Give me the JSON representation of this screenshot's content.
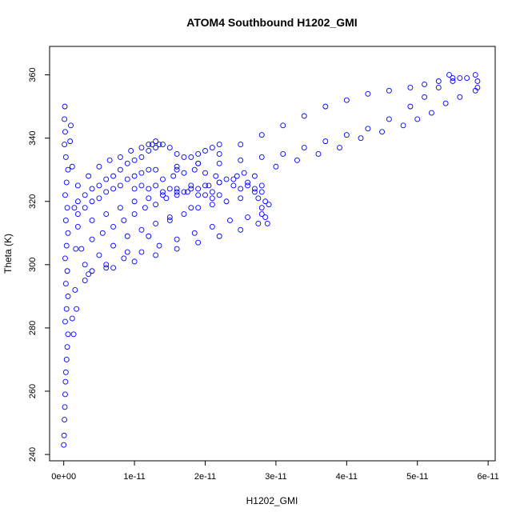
{
  "chart_data": {
    "type": "scatter",
    "title": "ATOM4 Southbound H1202_GMI",
    "xlabel": "H1202_GMI",
    "ylabel": "Theta (K)",
    "xlim": [
      -2e-12,
      6.1e-11
    ],
    "ylim": [
      238,
      369
    ],
    "x_ticks": [
      0,
      1e-11,
      2e-11,
      3e-11,
      4e-11,
      5e-11,
      6e-11
    ],
    "x_tick_labels": [
      "0e+00",
      "1e-11",
      "2e-11",
      "3e-11",
      "4e-11",
      "5e-11",
      "6e-11"
    ],
    "y_ticks": [
      240,
      260,
      280,
      300,
      320,
      340,
      360
    ],
    "y_tick_labels": [
      "240",
      "260",
      "280",
      "300",
      "320",
      "340",
      "360"
    ],
    "grid": false,
    "marker": "open-circle",
    "color": "#0000ff",
    "series": [
      {
        "points": [
          [
            0.0,
            243
          ],
          [
            5e-14,
            246
          ],
          [
            1e-13,
            251
          ],
          [
            1.5e-13,
            255
          ],
          [
            2e-13,
            259
          ],
          [
            2.5e-13,
            263
          ],
          [
            3e-13,
            266
          ],
          [
            4e-13,
            270
          ],
          [
            5e-13,
            274
          ],
          [
            6e-13,
            278
          ],
          [
            2e-13,
            282
          ],
          [
            4e-13,
            286
          ],
          [
            6e-13,
            290
          ],
          [
            3e-13,
            294
          ],
          [
            5e-13,
            298
          ],
          [
            2e-13,
            302
          ],
          [
            4e-13,
            306
          ],
          [
            6e-13,
            310
          ],
          [
            3e-13,
            314
          ],
          [
            5e-13,
            318
          ],
          [
            2e-13,
            322
          ],
          [
            4e-13,
            326
          ],
          [
            6e-13,
            330
          ],
          [
            3e-13,
            334
          ],
          [
            1e-13,
            338
          ],
          [
            2e-13,
            342
          ],
          [
            1e-13,
            346
          ],
          [
            1.5e-13,
            350
          ],
          [
            1e-12,
            344
          ],
          [
            9e-13,
            339
          ],
          [
            1.2e-12,
            331
          ],
          [
            1.5e-12,
            318
          ],
          [
            1.7e-12,
            305
          ],
          [
            1.6e-12,
            292
          ],
          [
            1.8e-12,
            286
          ],
          [
            1.4e-12,
            278
          ],
          [
            1.2e-12,
            283
          ],
          [
            2e-12,
            316
          ],
          [
            3e-12,
            318
          ],
          [
            4e-12,
            320
          ],
          [
            5e-12,
            321
          ],
          [
            6e-12,
            323
          ],
          [
            7e-12,
            324
          ],
          [
            8e-12,
            325
          ],
          [
            9e-12,
            327
          ],
          [
            1e-11,
            328
          ],
          [
            1.1e-11,
            329
          ],
          [
            1.2e-11,
            330
          ],
          [
            2e-12,
            320
          ],
          [
            3e-12,
            322
          ],
          [
            4e-12,
            324
          ],
          [
            5e-12,
            325
          ],
          [
            6e-12,
            327
          ],
          [
            7e-12,
            328
          ],
          [
            8e-12,
            330
          ],
          [
            9e-12,
            332
          ],
          [
            1e-11,
            333
          ],
          [
            1.1e-11,
            334
          ],
          [
            1.2e-11,
            336
          ],
          [
            1.3e-11,
            337
          ],
          [
            2e-12,
            325
          ],
          [
            3.5e-12,
            328
          ],
          [
            5e-12,
            331
          ],
          [
            6.5e-12,
            333
          ],
          [
            8e-12,
            334
          ],
          [
            9.5e-12,
            336
          ],
          [
            1.1e-11,
            337
          ],
          [
            1.25e-11,
            338
          ],
          [
            1.35e-11,
            338
          ],
          [
            2.5e-12,
            305
          ],
          [
            4e-12,
            308
          ],
          [
            5.5e-12,
            310
          ],
          [
            7e-12,
            312
          ],
          [
            8.5e-12,
            314
          ],
          [
            1e-11,
            316
          ],
          [
            1.15e-11,
            318
          ],
          [
            1.3e-11,
            319
          ],
          [
            1.45e-11,
            321
          ],
          [
            1.6e-11,
            322
          ],
          [
            1.75e-11,
            323
          ],
          [
            1.9e-11,
            324
          ],
          [
            2.05e-11,
            325
          ],
          [
            2.2e-11,
            326
          ],
          [
            3e-12,
            300
          ],
          [
            5e-12,
            303
          ],
          [
            7e-12,
            306
          ],
          [
            9e-12,
            309
          ],
          [
            1.1e-11,
            311
          ],
          [
            1.3e-11,
            313
          ],
          [
            1.5e-11,
            315
          ],
          [
            1.7e-11,
            316
          ],
          [
            1.9e-11,
            318
          ],
          [
            2.1e-11,
            319
          ],
          [
            2.3e-11,
            320
          ],
          [
            2.5e-11,
            321
          ],
          [
            3.5e-12,
            297
          ],
          [
            6e-12,
            300
          ],
          [
            8.5e-12,
            302
          ],
          [
            1.1e-11,
            304
          ],
          [
            1.35e-11,
            306
          ],
          [
            1.6e-11,
            308
          ],
          [
            1.85e-11,
            310
          ],
          [
            2.1e-11,
            312
          ],
          [
            2.35e-11,
            314
          ],
          [
            2.6e-11,
            315
          ],
          [
            2.8e-11,
            316
          ],
          [
            4e-12,
            298
          ],
          [
            7e-12,
            299
          ],
          [
            1e-11,
            301
          ],
          [
            1.3e-11,
            303
          ],
          [
            1.6e-11,
            305
          ],
          [
            1.9e-11,
            307
          ],
          [
            2.2e-11,
            309
          ],
          [
            2.5e-11,
            311
          ],
          [
            2.75e-11,
            313
          ],
          [
            2e-12,
            312
          ],
          [
            4e-12,
            314
          ],
          [
            6e-12,
            316
          ],
          [
            8e-12,
            318
          ],
          [
            1e-11,
            320
          ],
          [
            1.2e-11,
            321
          ],
          [
            1.4e-11,
            322
          ],
          [
            1.6e-11,
            323
          ],
          [
            1.8e-11,
            324
          ],
          [
            2e-11,
            325
          ],
          [
            2.2e-11,
            326
          ],
          [
            2.4e-11,
            327
          ],
          [
            2.6e-11,
            326
          ],
          [
            2.8e-11,
            323
          ],
          [
            2.85e-11,
            320
          ],
          [
            2.9e-11,
            319
          ],
          [
            2.75e-11,
            321
          ],
          [
            2.7e-11,
            323
          ],
          [
            2.8e-11,
            318
          ],
          [
            2.85e-11,
            315
          ],
          [
            2.88e-11,
            313
          ],
          [
            2.8e-11,
            325
          ],
          [
            2.7e-11,
            324
          ],
          [
            2.6e-11,
            325
          ],
          [
            2.5e-11,
            324
          ],
          [
            1.2e-11,
            338
          ],
          [
            1.3e-11,
            339
          ],
          [
            1.4e-11,
            338
          ],
          [
            1.5e-11,
            337
          ],
          [
            1.6e-11,
            335
          ],
          [
            1.7e-11,
            334
          ],
          [
            1.8e-11,
            334
          ],
          [
            1.9e-11,
            335
          ],
          [
            2e-11,
            336
          ],
          [
            2.1e-11,
            337
          ],
          [
            2.2e-11,
            338
          ],
          [
            1.4e-11,
            327
          ],
          [
            1.55e-11,
            328
          ],
          [
            1.7e-11,
            329
          ],
          [
            1.85e-11,
            330
          ],
          [
            2e-11,
            329
          ],
          [
            2.15e-11,
            328
          ],
          [
            2.3e-11,
            327
          ],
          [
            2.45e-11,
            328
          ],
          [
            2.55e-11,
            329
          ],
          [
            1e-11,
            324
          ],
          [
            1.1e-11,
            325
          ],
          [
            1.2e-11,
            324
          ],
          [
            1.3e-11,
            325
          ],
          [
            1.4e-11,
            323
          ],
          [
            1.5e-11,
            324
          ],
          [
            1.6e-11,
            324
          ],
          [
            1.7e-11,
            323
          ],
          [
            1.8e-11,
            325
          ],
          [
            1.9e-11,
            322
          ],
          [
            2e-11,
            322
          ],
          [
            2.1e-11,
            323
          ],
          [
            2.2e-11,
            322
          ],
          [
            1.3e-11,
            330
          ],
          [
            1.6e-11,
            331
          ],
          [
            1.9e-11,
            332
          ],
          [
            2.2e-11,
            332
          ],
          [
            2.5e-11,
            333
          ],
          [
            2.8e-11,
            334
          ],
          [
            3.1e-11,
            335
          ],
          [
            3.4e-11,
            337
          ],
          [
            3.7e-11,
            339
          ],
          [
            4e-11,
            341
          ],
          [
            4.3e-11,
            343
          ],
          [
            4.6e-11,
            346
          ],
          [
            4.9e-11,
            350
          ],
          [
            5.1e-11,
            353
          ],
          [
            5.3e-11,
            356
          ],
          [
            5.5e-11,
            358
          ],
          [
            5.7e-11,
            359
          ],
          [
            5.82e-11,
            360
          ],
          [
            5.85e-11,
            358
          ],
          [
            5.85e-11,
            356
          ],
          [
            5.82e-11,
            355
          ],
          [
            5.6e-11,
            359
          ],
          [
            5.5e-11,
            359
          ],
          [
            5.45e-11,
            360
          ],
          [
            5.3e-11,
            358
          ],
          [
            5.1e-11,
            357
          ],
          [
            4.9e-11,
            356
          ],
          [
            4.6e-11,
            355
          ],
          [
            4.3e-11,
            354
          ],
          [
            4e-11,
            352
          ],
          [
            3.7e-11,
            350
          ],
          [
            3.4e-11,
            347
          ],
          [
            3.1e-11,
            344
          ],
          [
            2.8e-11,
            341
          ],
          [
            2.5e-11,
            338
          ],
          [
            2.2e-11,
            335
          ],
          [
            1.9e-11,
            332
          ],
          [
            1.6e-11,
            330
          ],
          [
            5.6e-11,
            353
          ],
          [
            5.4e-11,
            351
          ],
          [
            5.2e-11,
            348
          ],
          [
            5e-11,
            346
          ],
          [
            4.8e-11,
            344
          ],
          [
            4.5e-11,
            342
          ],
          [
            4.2e-11,
            340
          ],
          [
            3.9e-11,
            337
          ],
          [
            3.6e-11,
            335
          ],
          [
            3.3e-11,
            333
          ],
          [
            3e-11,
            331
          ],
          [
            2.7e-11,
            328
          ],
          [
            2.4e-11,
            325
          ],
          [
            2.1e-11,
            321
          ],
          [
            1.8e-11,
            318
          ],
          [
            1.5e-11,
            314
          ],
          [
            1.2e-11,
            309
          ],
          [
            9e-12,
            304
          ],
          [
            6e-12,
            299
          ],
          [
            3e-12,
            295
          ]
        ]
      }
    ]
  }
}
